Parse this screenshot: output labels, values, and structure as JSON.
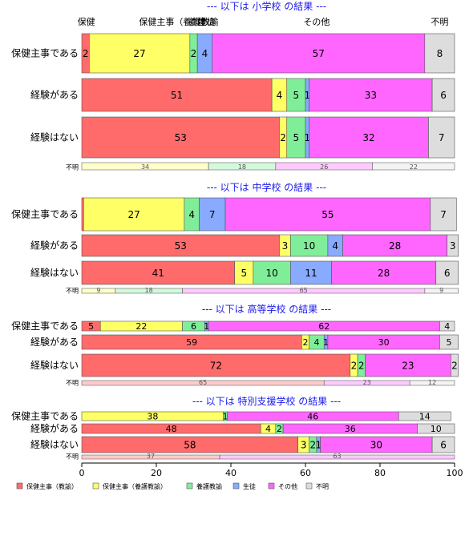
{
  "colors": {
    "c0": "#ff6b6b",
    "c1": "#ffff66",
    "c2": "#80ee99",
    "c3": "#88aaff",
    "c4": "#ff66ff",
    "c5": "#dddddd",
    "title": "#1a1aee"
  },
  "chart_data": {
    "type": "bar",
    "orientation": "horizontal",
    "stacked": true,
    "xlim": [
      0,
      100
    ],
    "x_ticks": [
      "0",
      "20",
      "40",
      "60",
      "80",
      "100"
    ],
    "category_header_labels": [
      "保健",
      "保健主事（養護教諭",
      "養護",
      "生徒",
      "その他",
      "不明"
    ],
    "legend": {
      "placement": "bottom-left",
      "entries": [
        "保健主事（教諭）",
        "保健主事（養護教諭）",
        "養護教諭",
        "生徒",
        "その他",
        "不明"
      ]
    },
    "panels": [
      {
        "title": "--- 以下は 小学校 の結果 ---",
        "rows": [
          {
            "label": "保健主事である",
            "values": [
              2,
              27,
              2,
              4,
              57,
              8
            ]
          },
          {
            "label": "経験がある",
            "values": [
              51,
              4,
              5,
              1,
              33,
              6
            ]
          },
          {
            "label": "経験はない",
            "values": [
              53,
              2,
              5,
              1,
              32,
              7
            ]
          }
        ],
        "unknown": {
          "label": "不明",
          "values": [
            0,
            34,
            18,
            0,
            26,
            22
          ]
        }
      },
      {
        "title": "--- 以下は 中学校 の結果 ---",
        "rows": [
          {
            "label": "保健主事である",
            "values": [
              0.5,
              27,
              4,
              7,
              55,
              7
            ]
          },
          {
            "label": "経験がある",
            "values": [
              53,
              3,
              10,
              4,
              28,
              3
            ]
          },
          {
            "label": "経験はない",
            "values": [
              41,
              5,
              10,
              11,
              28,
              6
            ]
          }
        ],
        "unknown": {
          "label": "不明",
          "values": [
            0,
            9,
            18,
            0,
            65,
            9
          ]
        }
      },
      {
        "title": "--- 以下は 高等学校 の結果 ---",
        "rows": [
          {
            "label": "保健主事である",
            "values": [
              5,
              22,
              6,
              1,
              62,
              4
            ]
          },
          {
            "label": "経験がある",
            "values": [
              59,
              2,
              4,
              1,
              30,
              5
            ]
          },
          {
            "label": "経験はない",
            "values": [
              72,
              2,
              2,
              0,
              23,
              2
            ]
          }
        ],
        "unknown": {
          "label": "不明",
          "values": [
            65,
            0,
            0,
            0,
            23,
            12
          ]
        }
      },
      {
        "title": "--- 以下は 特別支援学校 の結果 ---",
        "rows": [
          {
            "label": "保健主事である",
            "values": [
              0,
              38,
              1,
              0,
              46,
              14
            ]
          },
          {
            "label": "経験がある",
            "values": [
              48,
              4,
              2,
              0,
              36,
              10
            ]
          },
          {
            "label": "経験はない",
            "values": [
              58,
              3,
              2,
              1,
              30,
              6
            ]
          }
        ],
        "unknown": {
          "label": "不明",
          "values": [
            37,
            0,
            0,
            0,
            63,
            0
          ]
        }
      }
    ]
  }
}
